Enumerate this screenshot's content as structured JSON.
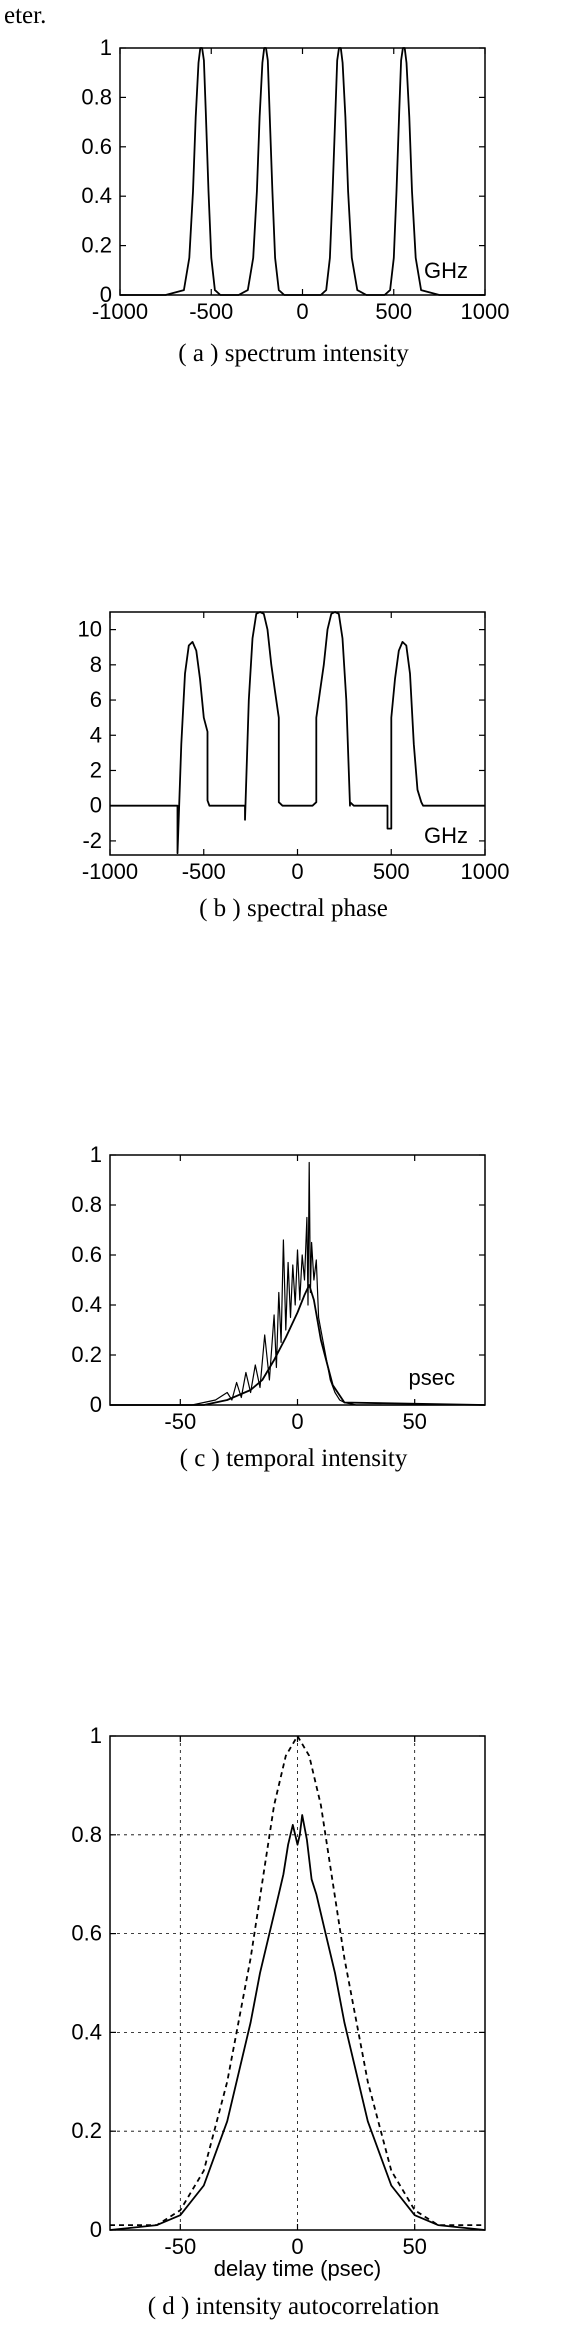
{
  "page": {
    "fragment_text": "eter."
  },
  "chart_data": [
    {
      "id": "a",
      "type": "line",
      "caption": "( a ) spectrum intensity",
      "unit_label": "GHz",
      "xlim": [
        -1000,
        1000
      ],
      "ylim": [
        0,
        1
      ],
      "xticks": [
        -1000,
        -500,
        0,
        500,
        1000
      ],
      "xtick_labels": [
        "-1000",
        "-500",
        "0",
        "500",
        "1000"
      ],
      "yticks": [
        0,
        0.2,
        0.4,
        0.6,
        0.8,
        1
      ],
      "ytick_labels": [
        "0",
        "0.2",
        "0.4",
        "0.6",
        "0.8",
        "1"
      ],
      "grid": false,
      "series": [
        {
          "style": "solid",
          "x": [
            -1000,
            -750,
            -650,
            -620,
            -600,
            -585,
            -570,
            -560,
            -550,
            -540,
            -530,
            -515,
            -500,
            -480,
            -450,
            -350,
            -300,
            -270,
            -250,
            -235,
            -220,
            -210,
            -200,
            -190,
            -180,
            -165,
            -150,
            -130,
            -100,
            0,
            100,
            130,
            150,
            165,
            180,
            190,
            200,
            210,
            220,
            235,
            250,
            270,
            300,
            350,
            450,
            480,
            500,
            515,
            530,
            540,
            550,
            560,
            570,
            585,
            600,
            620,
            650,
            750,
            1000
          ],
          "y": [
            0,
            0,
            0.02,
            0.15,
            0.42,
            0.72,
            0.94,
            1,
            1,
            0.95,
            0.74,
            0.42,
            0.15,
            0.02,
            0,
            0,
            0.02,
            0.15,
            0.42,
            0.72,
            0.94,
            1,
            1,
            0.95,
            0.74,
            0.42,
            0.15,
            0.02,
            0,
            0,
            0,
            0.02,
            0.15,
            0.42,
            0.74,
            0.95,
            1,
            1,
            0.94,
            0.72,
            0.42,
            0.15,
            0.02,
            0,
            0,
            0.02,
            0.15,
            0.42,
            0.74,
            0.95,
            1,
            1,
            0.94,
            0.72,
            0.42,
            0.15,
            0.02,
            0,
            0
          ]
        }
      ]
    },
    {
      "id": "b",
      "type": "line",
      "caption": "( b ) spectral phase",
      "unit_label": "GHz",
      "xlim": [
        -1000,
        1000
      ],
      "ylim": [
        -2.8,
        11
      ],
      "xticks": [
        -1000,
        -500,
        0,
        500,
        1000
      ],
      "xtick_labels": [
        "-1000",
        "-500",
        "0",
        "500",
        "1000"
      ],
      "yticks": [
        -2,
        0,
        2,
        4,
        6,
        8,
        10
      ],
      "ytick_labels": [
        "-2",
        "0",
        "2",
        "4",
        "6",
        "8",
        "10"
      ],
      "grid": false,
      "series": [
        {
          "style": "solid",
          "x": [
            -1000,
            -640,
            -640,
            -620,
            -600,
            -580,
            -560,
            -540,
            -520,
            -500,
            -480,
            -480,
            -470,
            -300,
            -280,
            -280,
            -260,
            -240,
            -220,
            -200,
            -180,
            -160,
            -140,
            -120,
            -100,
            -100,
            -80,
            80,
            100,
            100,
            120,
            140,
            160,
            180,
            200,
            220,
            240,
            260,
            280,
            280,
            300,
            470,
            480,
            480,
            500,
            500,
            520,
            540,
            560,
            580,
            600,
            620,
            640,
            660,
            670,
            1000
          ],
          "y": [
            0,
            0,
            -2.7,
            3.5,
            7.5,
            9.1,
            9.3,
            8.8,
            7.2,
            5,
            4.2,
            0.3,
            0,
            0,
            0,
            -0.8,
            6,
            9.5,
            10.9,
            11,
            10.9,
            10,
            8,
            6.5,
            5,
            0.2,
            0,
            0,
            0.2,
            5,
            6.5,
            8,
            10,
            10.9,
            11,
            10.9,
            9.5,
            6,
            0,
            0.2,
            0,
            0,
            0,
            -1.3,
            -1.3,
            5,
            7.2,
            8.8,
            9.3,
            9.1,
            7.5,
            3.5,
            0.9,
            0.2,
            0,
            0
          ]
        }
      ]
    },
    {
      "id": "c",
      "type": "line",
      "caption": "( c ) temporal intensity",
      "unit_label": "psec",
      "xlim": [
        -80,
        80
      ],
      "ylim": [
        0,
        1
      ],
      "xticks": [
        -50,
        0,
        50
      ],
      "xtick_labels": [
        "-50",
        "0",
        "50"
      ],
      "yticks": [
        0,
        0.2,
        0.4,
        0.6,
        0.8,
        1
      ],
      "ytick_labels": [
        "0",
        "0.2",
        "0.4",
        "0.6",
        "0.8",
        "1"
      ],
      "grid": false,
      "series": [
        {
          "style": "solid",
          "x": [
            -80,
            -45,
            -40,
            -35,
            -30,
            -28,
            -26,
            -24,
            -22,
            -20,
            -18,
            -16,
            -14,
            -12,
            -10,
            -9,
            -8,
            -7,
            -6,
            -5,
            -4,
            -3,
            -2,
            -1,
            0,
            1,
            2,
            3,
            4,
            4.5,
            5,
            5.5,
            6,
            7,
            8,
            9,
            10,
            12,
            14,
            16,
            18,
            20,
            25,
            80
          ],
          "y": [
            0,
            0,
            0.01,
            0.02,
            0.05,
            0.02,
            0.09,
            0.03,
            0.13,
            0.05,
            0.16,
            0.07,
            0.28,
            0.1,
            0.36,
            0.15,
            0.45,
            0.25,
            0.66,
            0.3,
            0.57,
            0.35,
            0.56,
            0.4,
            0.62,
            0.42,
            0.6,
            0.5,
            0.75,
            0.4,
            0.97,
            0.45,
            0.65,
            0.5,
            0.58,
            0.35,
            0.3,
            0.2,
            0.1,
            0.05,
            0.02,
            0.01,
            0,
            0
          ]
        },
        {
          "style": "solid",
          "x": [
            -80,
            -40,
            -30,
            -20,
            -15,
            -10,
            -5,
            0,
            3,
            5,
            7,
            10,
            15,
            20,
            80
          ],
          "y": [
            0,
            0,
            0.02,
            0.06,
            0.1,
            0.18,
            0.27,
            0.37,
            0.44,
            0.48,
            0.42,
            0.26,
            0.08,
            0.01,
            0
          ]
        }
      ]
    },
    {
      "id": "d",
      "type": "line",
      "caption": "( d ) intensity autocorrelation",
      "xlabel": "delay time (psec)",
      "xlim": [
        -80,
        80
      ],
      "ylim": [
        0,
        1
      ],
      "xticks": [
        -50,
        0,
        50
      ],
      "xtick_labels": [
        "-50",
        "0",
        "50"
      ],
      "yticks": [
        0,
        0.2,
        0.4,
        0.6,
        0.8,
        1
      ],
      "ytick_labels": [
        "0",
        "0.2",
        "0.4",
        "0.6",
        "0.8",
        "1"
      ],
      "grid": true,
      "series": [
        {
          "style": "solid",
          "x": [
            -80,
            -60,
            -50,
            -40,
            -30,
            -20,
            -16,
            -12,
            -8,
            -6,
            -4,
            -2,
            -1,
            0,
            1,
            2,
            4,
            6,
            8,
            12,
            16,
            20,
            30,
            40,
            50,
            60,
            80
          ],
          "y": [
            0,
            0.01,
            0.03,
            0.09,
            0.22,
            0.42,
            0.52,
            0.6,
            0.68,
            0.72,
            0.78,
            0.82,
            0.8,
            0.78,
            0.8,
            0.84,
            0.79,
            0.71,
            0.68,
            0.6,
            0.52,
            0.42,
            0.22,
            0.09,
            0.03,
            0.01,
            0
          ]
        },
        {
          "style": "dashed",
          "x": [
            -80,
            -60,
            -50,
            -40,
            -30,
            -20,
            -10,
            -5,
            0,
            5,
            10,
            20,
            30,
            40,
            50,
            60,
            80
          ],
          "y": [
            0.01,
            0.01,
            0.04,
            0.12,
            0.3,
            0.55,
            0.86,
            0.96,
            1,
            0.96,
            0.86,
            0.55,
            0.3,
            0.12,
            0.04,
            0.01,
            0.01
          ]
        }
      ]
    }
  ]
}
